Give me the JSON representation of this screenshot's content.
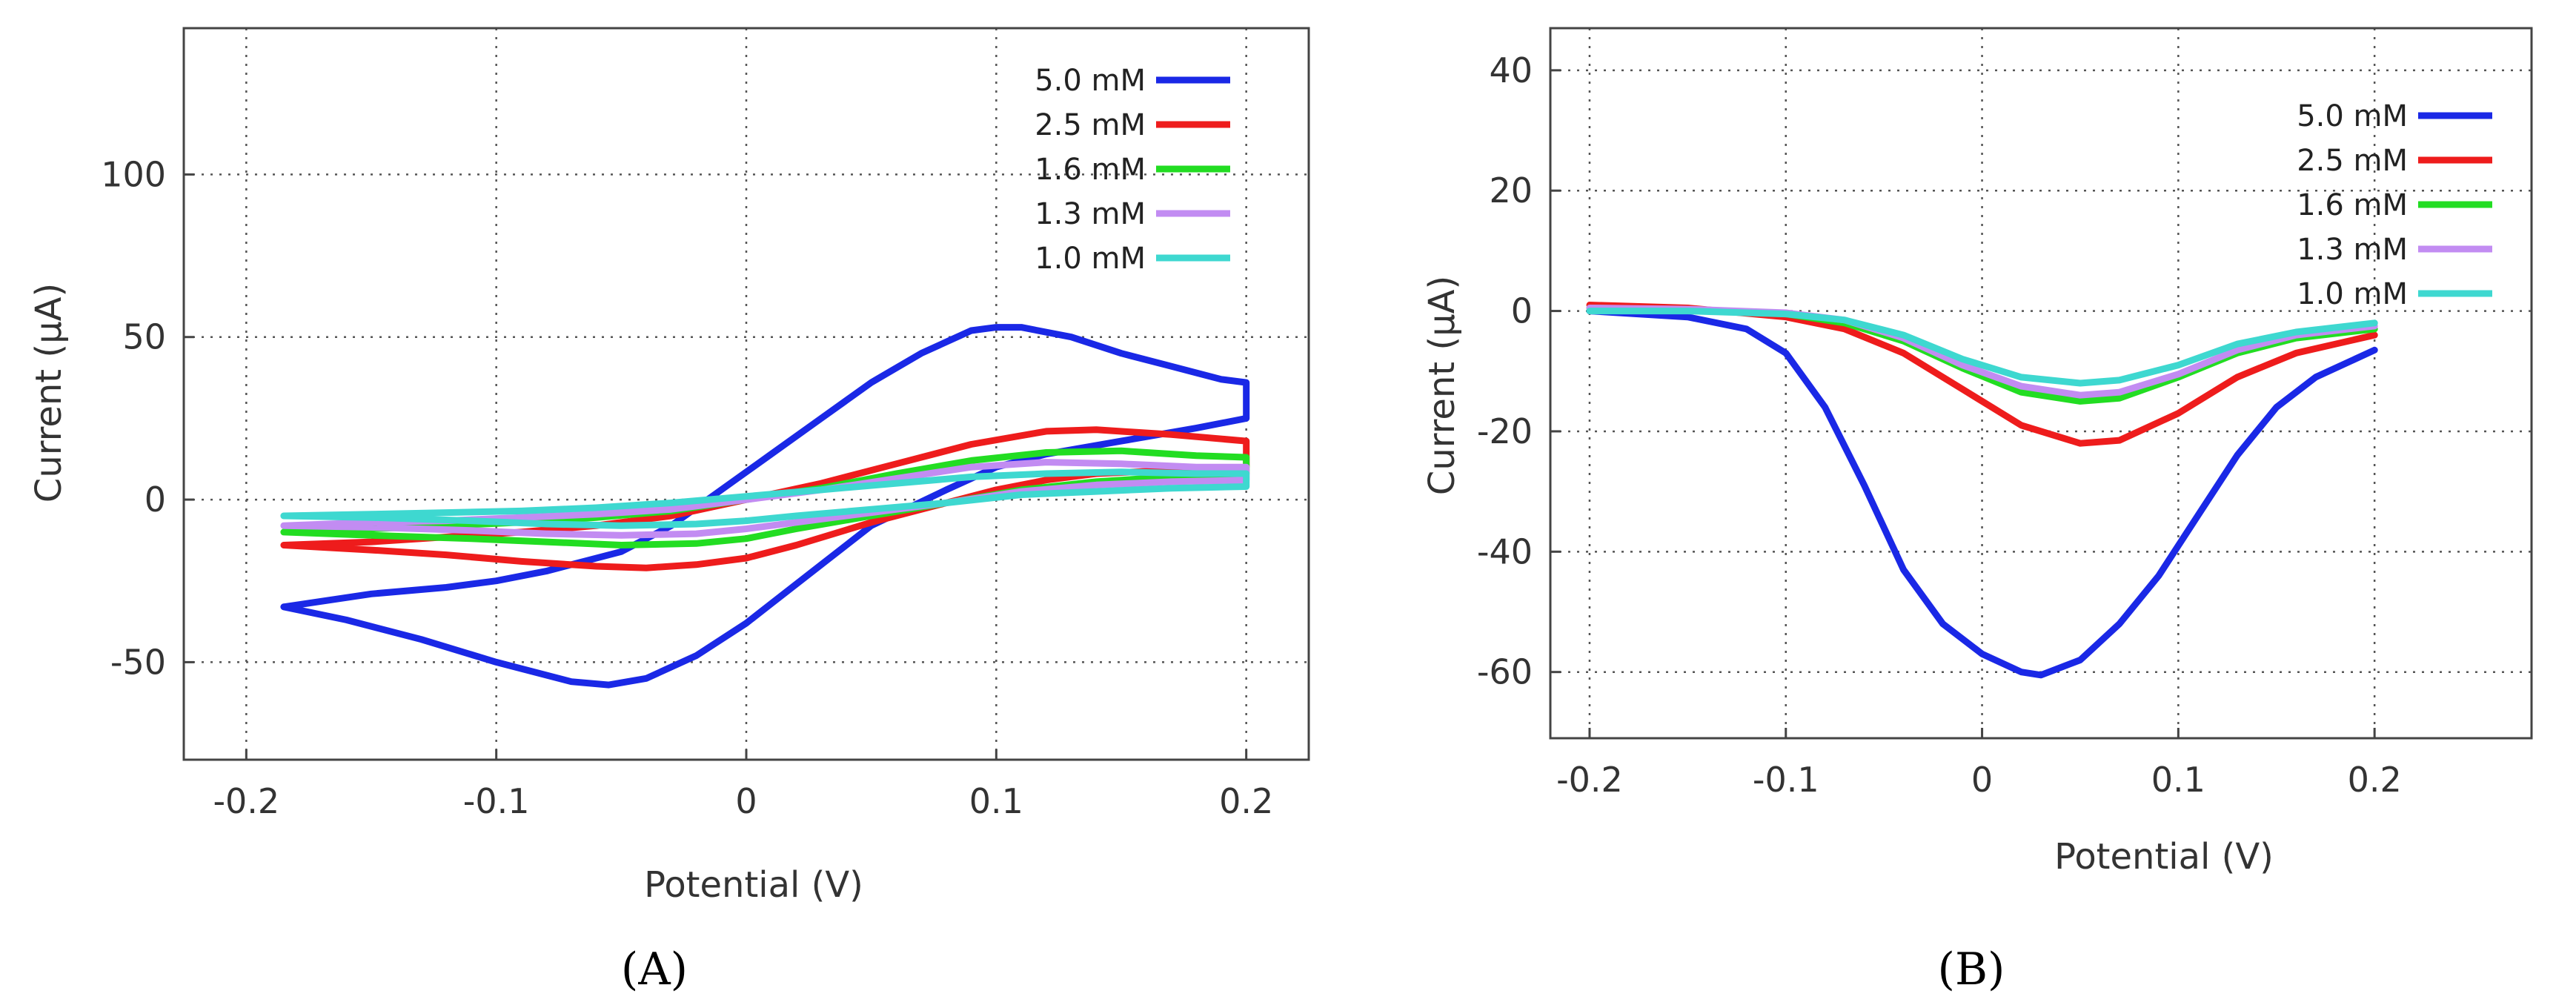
{
  "colors": {
    "5.0 mM": "#1a28e6",
    "2.5 mM": "#ee1c1c",
    "1.6 mM": "#22dd22",
    "1.3 mM": "#c28cf2",
    "1.0 mM": "#3ed8d0"
  },
  "chart_data": [
    {
      "panel": "A",
      "type": "line",
      "caption": "(A)",
      "xlabel": "Potential (V)",
      "ylabel": "Current (µA)",
      "xlim": [
        -0.225,
        0.225
      ],
      "ylim": [
        -80,
        145
      ],
      "xticks": [
        -0.2,
        -0.1,
        0,
        0.1,
        0.2
      ],
      "xtick_labels": [
        "-0.2",
        "-0.1",
        "0",
        "0.1",
        "0.2"
      ],
      "yticks": [
        -50,
        0,
        50,
        100
      ],
      "ytick_labels": [
        "-50",
        "0",
        "50",
        "100"
      ],
      "grid": true,
      "legend_position": "top-right",
      "series": [
        {
          "name": "5.0 mM",
          "points": [
            [
              -0.185,
              -33
            ],
            [
              -0.15,
              -29
            ],
            [
              -0.12,
              -27
            ],
            [
              -0.1,
              -25
            ],
            [
              -0.08,
              -22
            ],
            [
              -0.05,
              -16
            ],
            [
              -0.03,
              -8
            ],
            [
              -0.01,
              3
            ],
            [
              0.01,
              14
            ],
            [
              0.03,
              25
            ],
            [
              0.05,
              36
            ],
            [
              0.07,
              45
            ],
            [
              0.09,
              52
            ],
            [
              0.1,
              53
            ],
            [
              0.11,
              53
            ],
            [
              0.13,
              50
            ],
            [
              0.15,
              45
            ],
            [
              0.17,
              41
            ],
            [
              0.19,
              37
            ],
            [
              0.2,
              36
            ],
            [
              0.2,
              25
            ],
            [
              0.18,
              22
            ],
            [
              0.15,
              18
            ],
            [
              0.12,
              14
            ],
            [
              0.1,
              10
            ],
            [
              0.08,
              3
            ],
            [
              0.05,
              -8
            ],
            [
              0.03,
              -20
            ],
            [
              0.01,
              -32
            ],
            [
              0,
              -38
            ],
            [
              -0.02,
              -48
            ],
            [
              -0.04,
              -55
            ],
            [
              -0.055,
              -57
            ],
            [
              -0.07,
              -56
            ],
            [
              -0.1,
              -50
            ],
            [
              -0.13,
              -43
            ],
            [
              -0.16,
              -37
            ],
            [
              -0.185,
              -33
            ]
          ]
        },
        {
          "name": "2.5 mM",
          "points": [
            [
              -0.185,
              -14
            ],
            [
              -0.15,
              -13
            ],
            [
              -0.12,
              -11.5
            ],
            [
              -0.09,
              -10
            ],
            [
              -0.06,
              -8
            ],
            [
              -0.03,
              -5
            ],
            [
              0,
              0
            ],
            [
              0.03,
              5
            ],
            [
              0.06,
              11
            ],
            [
              0.09,
              17
            ],
            [
              0.12,
              21
            ],
            [
              0.14,
              21.5
            ],
            [
              0.17,
              20
            ],
            [
              0.2,
              18
            ],
            [
              0.2,
              10
            ],
            [
              0.17,
              9
            ],
            [
              0.14,
              8
            ],
            [
              0.12,
              6
            ],
            [
              0.1,
              3
            ],
            [
              0.08,
              -1
            ],
            [
              0.05,
              -7
            ],
            [
              0.02,
              -14
            ],
            [
              0,
              -18
            ],
            [
              -0.02,
              -20
            ],
            [
              -0.04,
              -21
            ],
            [
              -0.06,
              -20.5
            ],
            [
              -0.09,
              -19
            ],
            [
              -0.12,
              -17
            ],
            [
              -0.15,
              -15.5
            ],
            [
              -0.185,
              -14
            ]
          ]
        },
        {
          "name": "1.6 mM",
          "points": [
            [
              -0.185,
              -10
            ],
            [
              -0.15,
              -9
            ],
            [
              -0.12,
              -8
            ],
            [
              -0.09,
              -7
            ],
            [
              -0.06,
              -5.5
            ],
            [
              -0.03,
              -3.5
            ],
            [
              0,
              0
            ],
            [
              0.03,
              3.5
            ],
            [
              0.06,
              8
            ],
            [
              0.09,
              12
            ],
            [
              0.12,
              14.5
            ],
            [
              0.15,
              15
            ],
            [
              0.18,
              13.5
            ],
            [
              0.2,
              13
            ],
            [
              0.2,
              8
            ],
            [
              0.17,
              7
            ],
            [
              0.14,
              5.5
            ],
            [
              0.11,
              3
            ],
            [
              0.08,
              -1
            ],
            [
              0.05,
              -5
            ],
            [
              0.02,
              -9
            ],
            [
              0,
              -12
            ],
            [
              -0.02,
              -13.5
            ],
            [
              -0.05,
              -14
            ],
            [
              -0.08,
              -13
            ],
            [
              -0.11,
              -12
            ],
            [
              -0.15,
              -11
            ],
            [
              -0.185,
              -10
            ]
          ]
        },
        {
          "name": "1.3 mM",
          "points": [
            [
              -0.185,
              -8
            ],
            [
              -0.15,
              -7
            ],
            [
              -0.12,
              -6.5
            ],
            [
              -0.09,
              -5.5
            ],
            [
              -0.06,
              -4.5
            ],
            [
              -0.03,
              -3
            ],
            [
              0,
              0
            ],
            [
              0.03,
              3
            ],
            [
              0.06,
              6.5
            ],
            [
              0.09,
              10
            ],
            [
              0.12,
              11.5
            ],
            [
              0.15,
              11
            ],
            [
              0.18,
              10
            ],
            [
              0.2,
              10
            ],
            [
              0.2,
              6
            ],
            [
              0.17,
              5.5
            ],
            [
              0.14,
              4.5
            ],
            [
              0.11,
              2.5
            ],
            [
              0.08,
              -1
            ],
            [
              0.05,
              -4
            ],
            [
              0.02,
              -7
            ],
            [
              0,
              -9
            ],
            [
              -0.02,
              -10.5
            ],
            [
              -0.05,
              -11
            ],
            [
              -0.08,
              -10.5
            ],
            [
              -0.11,
              -9.5
            ],
            [
              -0.15,
              -8.5
            ],
            [
              -0.185,
              -8
            ]
          ]
        },
        {
          "name": "1.0 mM",
          "points": [
            [
              -0.185,
              -5
            ],
            [
              -0.15,
              -4.5
            ],
            [
              -0.12,
              -4
            ],
            [
              -0.09,
              -3.5
            ],
            [
              -0.06,
              -2.5
            ],
            [
              -0.03,
              -1
            ],
            [
              0,
              1
            ],
            [
              0.03,
              3
            ],
            [
              0.06,
              5
            ],
            [
              0.09,
              7
            ],
            [
              0.12,
              8
            ],
            [
              0.15,
              8.5
            ],
            [
              0.18,
              8
            ],
            [
              0.2,
              8
            ],
            [
              0.2,
              4
            ],
            [
              0.17,
              3.5
            ],
            [
              0.14,
              2.5
            ],
            [
              0.11,
              1.5
            ],
            [
              0.08,
              -1
            ],
            [
              0.05,
              -3
            ],
            [
              0.02,
              -5
            ],
            [
              0,
              -6.5
            ],
            [
              -0.02,
              -7.5
            ],
            [
              -0.05,
              -8
            ],
            [
              -0.08,
              -7.5
            ],
            [
              -0.11,
              -6.5
            ],
            [
              -0.15,
              -5.5
            ],
            [
              -0.185,
              -5
            ]
          ]
        }
      ]
    },
    {
      "panel": "B",
      "type": "line",
      "caption": "(B)",
      "xlabel": "Potential (V)",
      "ylabel": "Current (µA)",
      "xlim": [
        -0.22,
        0.28
      ],
      "ylim": [
        -71,
        47
      ],
      "xticks": [
        -0.2,
        -0.1,
        0,
        0.1,
        0.2
      ],
      "xtick_labels": [
        "-0.2",
        "-0.1",
        "0",
        "0.1",
        "0.2"
      ],
      "yticks": [
        -60,
        -40,
        -20,
        0,
        20,
        40
      ],
      "ytick_labels": [
        "-60",
        "-40",
        "-20",
        "0",
        "20",
        "40"
      ],
      "grid": true,
      "legend_position": "top-right",
      "series": [
        {
          "name": "5.0 mM",
          "points": [
            [
              -0.2,
              0
            ],
            [
              -0.15,
              -1
            ],
            [
              -0.12,
              -3
            ],
            [
              -0.1,
              -7
            ],
            [
              -0.08,
              -16
            ],
            [
              -0.06,
              -29
            ],
            [
              -0.04,
              -43
            ],
            [
              -0.02,
              -52
            ],
            [
              0,
              -57
            ],
            [
              0.02,
              -60
            ],
            [
              0.03,
              -60.5
            ],
            [
              0.05,
              -58
            ],
            [
              0.07,
              -52
            ],
            [
              0.09,
              -44
            ],
            [
              0.11,
              -34
            ],
            [
              0.13,
              -24
            ],
            [
              0.15,
              -16
            ],
            [
              0.17,
              -11
            ],
            [
              0.2,
              -6.5
            ]
          ]
        },
        {
          "name": "2.5 mM",
          "points": [
            [
              -0.2,
              1
            ],
            [
              -0.15,
              0.5
            ],
            [
              -0.1,
              -1
            ],
            [
              -0.07,
              -3
            ],
            [
              -0.04,
              -7
            ],
            [
              -0.01,
              -13
            ],
            [
              0.02,
              -19
            ],
            [
              0.05,
              -22
            ],
            [
              0.07,
              -21.5
            ],
            [
              0.1,
              -17
            ],
            [
              0.13,
              -11
            ],
            [
              0.16,
              -7
            ],
            [
              0.2,
              -4
            ]
          ]
        },
        {
          "name": "1.6 mM",
          "points": [
            [
              -0.2,
              0.5
            ],
            [
              -0.15,
              0.2
            ],
            [
              -0.1,
              -0.5
            ],
            [
              -0.07,
              -2
            ],
            [
              -0.04,
              -5
            ],
            [
              -0.01,
              -9.5
            ],
            [
              0.02,
              -13.5
            ],
            [
              0.05,
              -15
            ],
            [
              0.07,
              -14.5
            ],
            [
              0.1,
              -11
            ],
            [
              0.13,
              -7
            ],
            [
              0.16,
              -4.5
            ],
            [
              0.2,
              -3
            ]
          ]
        },
        {
          "name": "1.3 mM",
          "points": [
            [
              -0.2,
              0.5
            ],
            [
              -0.15,
              0.3
            ],
            [
              -0.1,
              -0.3
            ],
            [
              -0.07,
              -1.5
            ],
            [
              -0.04,
              -4.5
            ],
            [
              -0.01,
              -9
            ],
            [
              0.02,
              -12.5
            ],
            [
              0.05,
              -14
            ],
            [
              0.07,
              -13.5
            ],
            [
              0.1,
              -10.5
            ],
            [
              0.13,
              -6.5
            ],
            [
              0.16,
              -4
            ],
            [
              0.2,
              -2.5
            ]
          ]
        },
        {
          "name": "1.0 mM",
          "points": [
            [
              -0.2,
              0
            ],
            [
              -0.15,
              0
            ],
            [
              -0.1,
              -0.5
            ],
            [
              -0.07,
              -1.5
            ],
            [
              -0.04,
              -4
            ],
            [
              -0.01,
              -8
            ],
            [
              0.02,
              -11
            ],
            [
              0.05,
              -12
            ],
            [
              0.07,
              -11.5
            ],
            [
              0.1,
              -9
            ],
            [
              0.13,
              -5.5
            ],
            [
              0.16,
              -3.5
            ],
            [
              0.2,
              -2
            ]
          ]
        }
      ]
    }
  ]
}
